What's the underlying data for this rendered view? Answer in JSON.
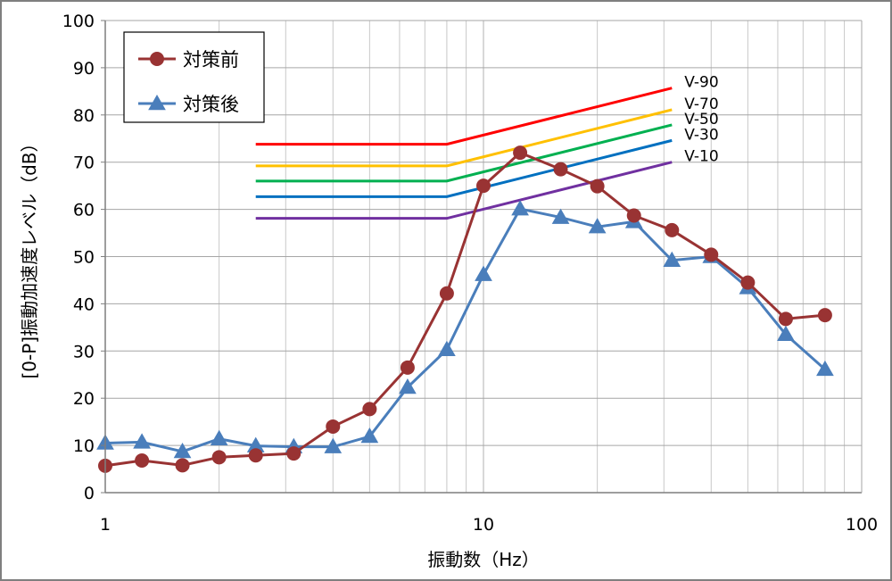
{
  "chart_data": {
    "type": "line",
    "xscale": "log",
    "xlim": [
      1,
      100
    ],
    "ylim": [
      0,
      100
    ],
    "xlabel": "振動数（Hz）",
    "ylabel": "[0-P]振動加速度レベル（dB）",
    "grid": true,
    "legend_position": "top-left",
    "x_ticks": [
      "1",
      "10",
      "100"
    ],
    "y_ticks": [
      "0",
      "10",
      "20",
      "30",
      "40",
      "50",
      "60",
      "70",
      "80",
      "90",
      "100"
    ],
    "series": [
      {
        "name": "対策前",
        "color": "#993333",
        "marker": "circle",
        "x": [
          1,
          1.25,
          1.6,
          2,
          2.5,
          3.15,
          4,
          5,
          6.3,
          8,
          10,
          12.5,
          16,
          20,
          25,
          31.5,
          40,
          50,
          63,
          80
        ],
        "y": [
          5.7,
          6.8,
          5.8,
          7.5,
          7.9,
          8.3,
          14.0,
          17.7,
          26.5,
          42.2,
          65.0,
          72.0,
          68.5,
          64.9,
          58.7,
          55.6,
          50.4,
          44.5,
          36.8,
          37.6
        ]
      },
      {
        "name": "対策後",
        "color": "#4a7ebb",
        "marker": "triangle",
        "x": [
          1,
          1.25,
          1.6,
          2,
          2.5,
          3.15,
          4,
          5,
          6.3,
          8,
          10,
          12.5,
          16,
          20,
          25,
          31.5,
          40,
          50,
          63,
          80
        ],
        "y": [
          10.5,
          10.7,
          8.7,
          11.4,
          9.9,
          9.7,
          9.7,
          11.9,
          22.3,
          30.3,
          46.2,
          60.1,
          58.3,
          56.3,
          57.4,
          49.2,
          50.0,
          43.4,
          33.5,
          26.1
        ]
      }
    ],
    "reference_lines": [
      {
        "label": "V-90",
        "color": "#ff0000",
        "x": [
          2.5,
          8,
          31.5
        ],
        "y": [
          73.8,
          73.8,
          85.7
        ]
      },
      {
        "label": "V-70",
        "color": "#ffc000",
        "x": [
          2.5,
          8,
          31.5
        ],
        "y": [
          69.2,
          69.2,
          81.1
        ]
      },
      {
        "label": "V-50",
        "color": "#00b050",
        "x": [
          2.5,
          8,
          31.5
        ],
        "y": [
          66.0,
          66.0,
          77.9
        ]
      },
      {
        "label": "V-30",
        "color": "#0070c0",
        "x": [
          2.5,
          8,
          31.5
        ],
        "y": [
          62.7,
          62.7,
          74.6
        ]
      },
      {
        "label": "V-10",
        "color": "#7030a0",
        "x": [
          2.5,
          8,
          31.5
        ],
        "y": [
          58.1,
          58.1,
          70.0
        ]
      }
    ]
  }
}
